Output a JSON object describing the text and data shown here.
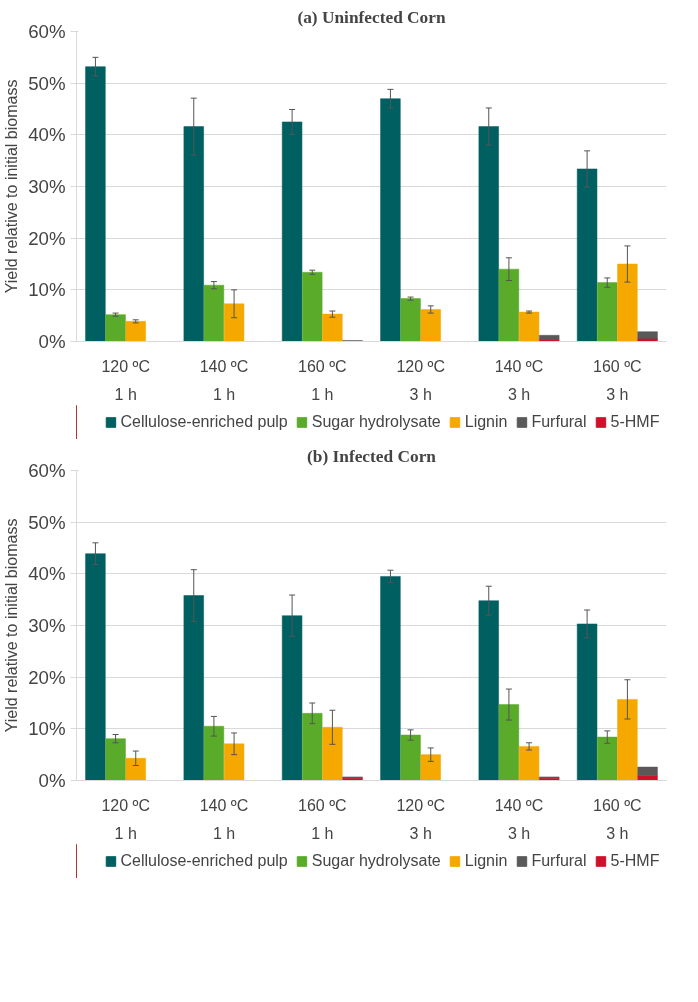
{
  "chart_data": [
    {
      "type": "bar",
      "title": "(a) Uninfected Corn",
      "ylabel": "Yield relative to initial biomass",
      "categories": [
        "120 ºC\n1 h",
        "140 ºC\n1 h",
        "160 ºC\n1 h",
        "120 ºC\n3 h",
        "140 ºC\n3 h",
        "160 ºC\n3 h"
      ],
      "ylim": [
        0,
        60
      ],
      "yticks": [
        {
          "value": 0,
          "label": "0%"
        },
        {
          "value": 10,
          "label": "10%"
        },
        {
          "value": 20,
          "label": "20%"
        },
        {
          "value": 30,
          "label": "30%"
        },
        {
          "value": 40,
          "label": "40%"
        },
        {
          "value": 50,
          "label": "50%"
        },
        {
          "value": 60,
          "label": "60%"
        }
      ],
      "grid": "y",
      "legend": "bottom",
      "series": [
        {
          "name": "Cellulose-enriched pulp",
          "color": "#005f60",
          "values": [
            53.2,
            41.6,
            42.5,
            47.0,
            41.6,
            33.4
          ],
          "errors": [
            1.8,
            5.5,
            2.4,
            1.8,
            3.6,
            3.5
          ]
        },
        {
          "name": "Sugar hydrolysate",
          "color": "#5aab2a",
          "values": [
            5.2,
            10.9,
            13.4,
            8.3,
            14.0,
            11.4
          ],
          "errors": [
            0.3,
            0.7,
            0.4,
            0.3,
            2.2,
            0.9
          ]
        },
        {
          "name": "Lignin",
          "color": "#f5a800",
          "values": [
            3.9,
            7.3,
            5.3,
            6.2,
            5.7,
            15.0
          ],
          "errors": [
            0.3,
            2.7,
            0.6,
            0.7,
            0.2,
            3.5
          ]
        },
        {
          "name": "Furfural",
          "color": "#595959",
          "values": [
            null,
            null,
            0.2,
            null,
            0.8,
            1.4
          ],
          "base": [
            null,
            null,
            0,
            null,
            0.4,
            0.5
          ]
        },
        {
          "name": "5-HMF",
          "color": "#d0102a",
          "values": [
            null,
            null,
            null,
            null,
            0.4,
            0.5
          ]
        }
      ]
    },
    {
      "type": "bar",
      "title": "(b) Infected Corn",
      "ylabel": "Yield relative to initial biomass",
      "categories": [
        "120 ºC\n1 h",
        "140 ºC\n1 h",
        "160 ºC\n1 h",
        "120 ºC\n3 h",
        "140 ºC\n3 h",
        "160 ºC\n3 h"
      ],
      "ylim": [
        0,
        60
      ],
      "yticks": [
        {
          "value": 0,
          "label": "0%"
        },
        {
          "value": 10,
          "label": "10%"
        },
        {
          "value": 20,
          "label": "20%"
        },
        {
          "value": 30,
          "label": "30%"
        },
        {
          "value": 40,
          "label": "40%"
        },
        {
          "value": 50,
          "label": "50%"
        },
        {
          "value": 60,
          "label": "60%"
        }
      ],
      "grid": "y",
      "legend": "bottom",
      "series": [
        {
          "name": "Cellulose-enriched pulp",
          "color": "#005f60",
          "values": [
            43.9,
            35.8,
            31.9,
            39.5,
            34.8,
            30.3
          ],
          "errors": [
            2.1,
            5.0,
            4.0,
            1.2,
            2.8,
            2.7
          ]
        },
        {
          "name": "Sugar hydrolysate",
          "color": "#5aab2a",
          "values": [
            8.1,
            10.5,
            13.0,
            8.8,
            14.7,
            8.4
          ],
          "errors": [
            0.8,
            1.9,
            2.0,
            1.0,
            3.0,
            1.2
          ]
        },
        {
          "name": "Lignin",
          "color": "#f5a800",
          "values": [
            4.3,
            7.1,
            10.3,
            5.0,
            6.6,
            15.7
          ],
          "errors": [
            1.4,
            2.1,
            3.3,
            1.3,
            0.7,
            3.8
          ]
        },
        {
          "name": "Furfural",
          "color": "#595959",
          "values": [
            null,
            null,
            0.3,
            null,
            0.3,
            1.7
          ],
          "base": [
            null,
            null,
            0.4,
            null,
            0.4,
            0.9
          ]
        },
        {
          "name": "5-HMF",
          "color": "#d0102a",
          "values": [
            null,
            null,
            0.4,
            null,
            0.4,
            0.9
          ]
        }
      ]
    }
  ]
}
